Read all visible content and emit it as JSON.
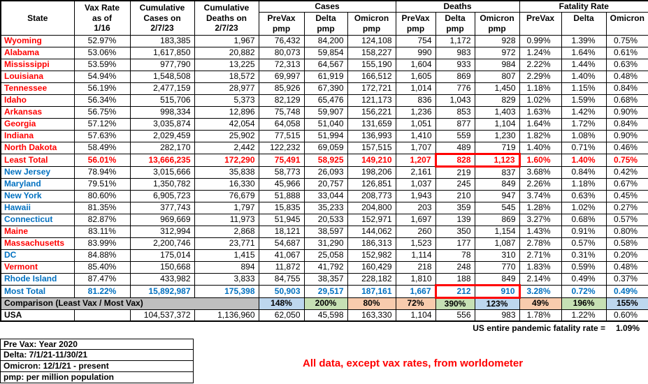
{
  "chart_data": {
    "type": "table",
    "fixed_columns": [
      "State",
      "Vax Rate\nas of\n1/16",
      "Cumulative\nCases on\n2/7/23",
      "Cumulative\nDeaths on\n2/7/23"
    ],
    "column_groups": [
      {
        "label": "Cases",
        "span": 3
      },
      {
        "label": "Deaths",
        "span": 3
      },
      {
        "label": "Fatality Rate",
        "span": 3
      }
    ],
    "sub_columns": [
      "PreVax\npmp",
      "Delta\npmp",
      "Omicron\npmp",
      "PreVax\npmp",
      "Delta\npmp",
      "Omicron\npmp",
      "PreVax",
      "Delta",
      "Omicron"
    ],
    "rows": [
      {
        "state": "Wyoming",
        "type": "least",
        "name_color": "red",
        "values": [
          "52.97%",
          "183,385",
          "1,967",
          "76,432",
          "84,200",
          "124,108",
          "754",
          "1,172",
          "928",
          "0.99%",
          "1.39%",
          "0.75%"
        ]
      },
      {
        "state": "Alabama",
        "type": "least",
        "name_color": "red",
        "values": [
          "53.06%",
          "1,617,850",
          "20,882",
          "80,073",
          "59,854",
          "158,227",
          "990",
          "983",
          "972",
          "1.24%",
          "1.64%",
          "0.61%"
        ]
      },
      {
        "state": "Mississippi",
        "type": "least",
        "name_color": "red",
        "values": [
          "53.59%",
          "977,790",
          "13,225",
          "72,313",
          "64,567",
          "155,190",
          "1,604",
          "933",
          "984",
          "2.22%",
          "1.44%",
          "0.63%"
        ]
      },
      {
        "state": "Louisiana",
        "type": "least",
        "name_color": "red",
        "values": [
          "54.94%",
          "1,548,508",
          "18,572",
          "69,997",
          "61,919",
          "166,512",
          "1,605",
          "869",
          "807",
          "2.29%",
          "1.40%",
          "0.48%"
        ]
      },
      {
        "state": "Tennessee",
        "type": "least",
        "name_color": "red",
        "values": [
          "56.19%",
          "2,477,159",
          "28,977",
          "85,926",
          "67,390",
          "172,721",
          "1,014",
          "776",
          "1,450",
          "1.18%",
          "1.15%",
          "0.84%"
        ]
      },
      {
        "state": "Idaho",
        "type": "least",
        "name_color": "red",
        "values": [
          "56.34%",
          "515,706",
          "5,373",
          "82,129",
          "65,476",
          "121,173",
          "836",
          "1,043",
          "829",
          "1.02%",
          "1.59%",
          "0.68%"
        ]
      },
      {
        "state": "Arkansas",
        "type": "least",
        "name_color": "red",
        "values": [
          "56.75%",
          "998,334",
          "12,896",
          "75,748",
          "59,907",
          "156,221",
          "1,236",
          "853",
          "1,403",
          "1.63%",
          "1.42%",
          "0.90%"
        ]
      },
      {
        "state": "Georgia",
        "type": "least",
        "name_color": "red",
        "values": [
          "57.12%",
          "3,035,874",
          "42,054",
          "64,058",
          "51,040",
          "131,659",
          "1,051",
          "877",
          "1,104",
          "1.64%",
          "1.72%",
          "0.84%"
        ]
      },
      {
        "state": "Indiana",
        "type": "least",
        "name_color": "red",
        "values": [
          "57.63%",
          "2,029,459",
          "25,902",
          "77,515",
          "51,994",
          "136,993",
          "1,410",
          "559",
          "1,230",
          "1.82%",
          "1.08%",
          "0.90%"
        ]
      },
      {
        "state": "North Dakota",
        "type": "least",
        "name_color": "red",
        "values": [
          "58.49%",
          "282,170",
          "2,442",
          "122,232",
          "69,059",
          "157,515",
          "1,707",
          "489",
          "719",
          "1.40%",
          "0.71%",
          "0.46%"
        ]
      },
      {
        "state": "Least Total",
        "type": "least-total",
        "name_color": "red",
        "highlight": [
          7,
          8
        ],
        "values": [
          "56.01%",
          "13,666,235",
          "172,290",
          "75,491",
          "58,925",
          "149,210",
          "1,207",
          "828",
          "1,123",
          "1.60%",
          "1.40%",
          "0.75%"
        ]
      },
      {
        "state": "New Jersey",
        "type": "most",
        "name_color": "blue",
        "values": [
          "78.94%",
          "3,015,666",
          "35,838",
          "58,773",
          "26,093",
          "198,206",
          "2,161",
          "219",
          "837",
          "3.68%",
          "0.84%",
          "0.42%"
        ]
      },
      {
        "state": "Maryland",
        "type": "most",
        "name_color": "blue",
        "values": [
          "79.51%",
          "1,350,782",
          "16,330",
          "45,966",
          "20,757",
          "126,851",
          "1,037",
          "245",
          "849",
          "2.26%",
          "1.18%",
          "0.67%"
        ]
      },
      {
        "state": "New York",
        "type": "most",
        "name_color": "blue",
        "values": [
          "80.60%",
          "6,905,723",
          "76,679",
          "51,888",
          "33,044",
          "208,773",
          "1,943",
          "210",
          "947",
          "3.74%",
          "0.63%",
          "0.45%"
        ]
      },
      {
        "state": "Hawaii",
        "type": "most",
        "name_color": "blue",
        "values": [
          "81.35%",
          "377,743",
          "1,797",
          "15,835",
          "35,233",
          "204,800",
          "203",
          "359",
          "545",
          "1.28%",
          "1.02%",
          "0.27%"
        ]
      },
      {
        "state": "Connecticut",
        "type": "most",
        "name_color": "blue",
        "values": [
          "82.87%",
          "969,669",
          "11,973",
          "51,945",
          "20,533",
          "152,971",
          "1,697",
          "139",
          "869",
          "3.27%",
          "0.68%",
          "0.57%"
        ]
      },
      {
        "state": "Maine",
        "type": "most",
        "name_color": "red",
        "values": [
          "83.11%",
          "312,994",
          "2,868",
          "18,121",
          "38,597",
          "144,062",
          "260",
          "350",
          "1,154",
          "1.43%",
          "0.91%",
          "0.80%"
        ]
      },
      {
        "state": "Massachusetts",
        "type": "most",
        "name_color": "red",
        "values": [
          "83.99%",
          "2,200,746",
          "23,771",
          "54,687",
          "31,290",
          "186,313",
          "1,523",
          "177",
          "1,087",
          "2.78%",
          "0.57%",
          "0.58%"
        ]
      },
      {
        "state": "DC",
        "type": "most",
        "name_color": "blue",
        "values": [
          "84.88%",
          "175,014",
          "1,415",
          "41,067",
          "25,058",
          "152,982",
          "1,114",
          "78",
          "310",
          "2.71%",
          "0.31%",
          "0.20%"
        ]
      },
      {
        "state": "Vermont",
        "type": "most",
        "name_color": "red",
        "values": [
          "85.40%",
          "150,668",
          "894",
          "11,872",
          "41,792",
          "160,429",
          "218",
          "248",
          "770",
          "1.83%",
          "0.59%",
          "0.48%"
        ]
      },
      {
        "state": "Rhode Island",
        "type": "most",
        "name_color": "blue",
        "values": [
          "87.47%",
          "433,982",
          "3,833",
          "84,755",
          "38,357",
          "228,182",
          "1,810",
          "188",
          "849",
          "2.14%",
          "0.49%",
          "0.37%"
        ]
      },
      {
        "state": "Most Total",
        "type": "most-total",
        "name_color": "blue",
        "highlight": [
          7,
          8
        ],
        "values": [
          "81.22%",
          "15,892,987",
          "175,398",
          "50,903",
          "29,517",
          "187,161",
          "1,667",
          "212",
          "910",
          "3.28%",
          "0.72%",
          "0.49%"
        ]
      },
      {
        "state": "Comparison (Least Vax / Most Vax)",
        "type": "comparison",
        "values": [
          "148%",
          "200%",
          "80%",
          "72%",
          "390%",
          "123%",
          "49%",
          "196%",
          "155%"
        ],
        "colors": [
          "blue",
          "green",
          "orange",
          "orange",
          "green",
          "blue",
          "orange",
          "green",
          "blue"
        ]
      },
      {
        "state": "USA",
        "type": "usa",
        "name_color": "black",
        "values": [
          "",
          "104,537,372",
          "1,136,960",
          "62,050",
          "45,598",
          "163,330",
          "1,104",
          "556",
          "983",
          "1.78%",
          "1.22%",
          "0.60%"
        ]
      }
    ]
  },
  "summary": {
    "label": "US entire pandemic fatality rate =",
    "value": "1.09%"
  },
  "notes": [
    "Pre Vax: Year 2020",
    "Delta: 7/1/21-11/30/21",
    "Omicron: 12/1/21 - present",
    "pmp: per million population"
  ],
  "annotation": "All data, except vax rates, from worldometer",
  "colors": {
    "least_text": "#FF0000",
    "most_text": "#0070C0",
    "highlight_box": "#FF0000",
    "comparison_label_bg": "#BFBFBF",
    "comparison_blue": "#BDD7EE",
    "comparison_green": "#C6E0B4",
    "comparison_orange": "#F8CBAD",
    "annotation_text": "#FF0000"
  }
}
